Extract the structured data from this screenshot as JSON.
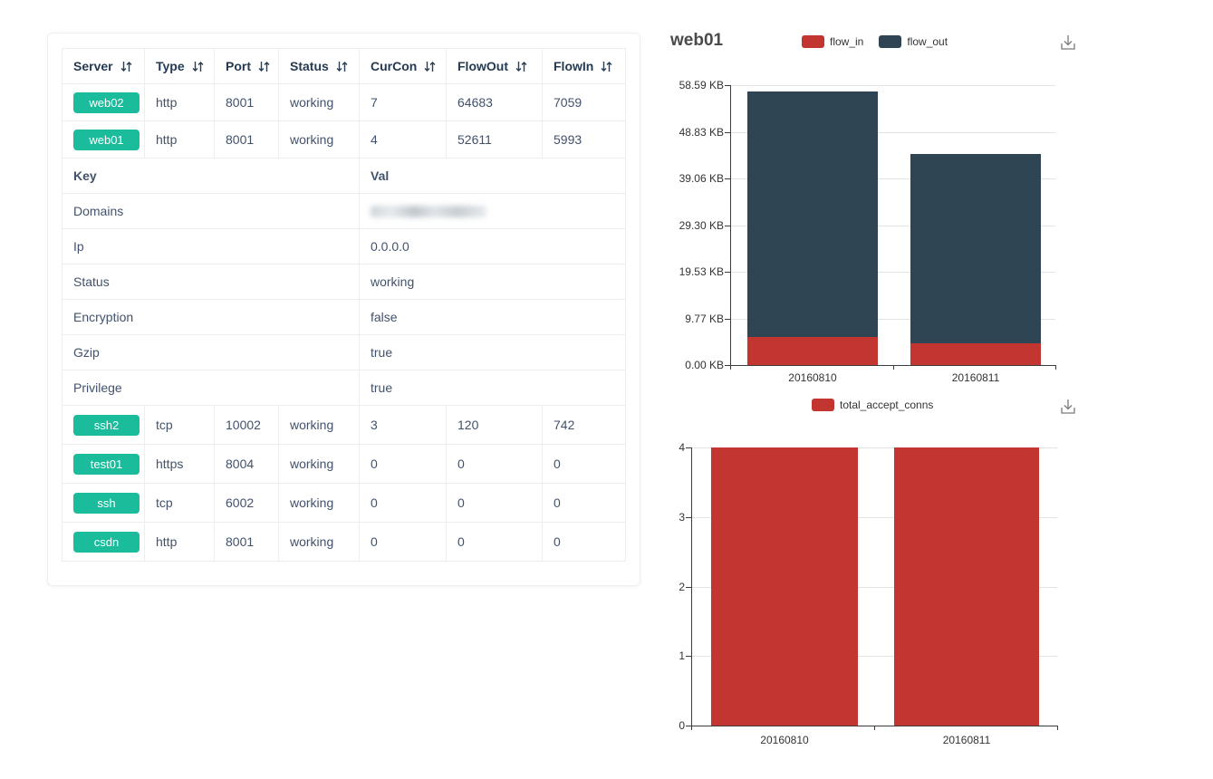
{
  "table": {
    "columns": [
      {
        "label": "Server"
      },
      {
        "label": "Type"
      },
      {
        "label": "Port"
      },
      {
        "label": "Status"
      },
      {
        "label": "CurCon"
      },
      {
        "label": "FlowOut"
      },
      {
        "label": "FlowIn"
      }
    ],
    "rows_top": [
      {
        "server": "web02",
        "type": "http",
        "port": "8001",
        "status": "working",
        "curcon": "7",
        "flowout": "64683",
        "flowin": "7059"
      },
      {
        "server": "web01",
        "type": "http",
        "port": "8001",
        "status": "working",
        "curcon": "4",
        "flowout": "52611",
        "flowin": "5993"
      }
    ],
    "kv_header": {
      "key": "Key",
      "val": "Val"
    },
    "kv_rows": [
      {
        "key": "Domains",
        "val": "",
        "redacted": true
      },
      {
        "key": "Ip",
        "val": "0.0.0.0"
      },
      {
        "key": "Status",
        "val": "working"
      },
      {
        "key": "Encryption",
        "val": "false"
      },
      {
        "key": "Gzip",
        "val": "true"
      },
      {
        "key": "Privilege",
        "val": "true"
      }
    ],
    "rows_bottom": [
      {
        "server": "ssh2",
        "type": "tcp",
        "port": "10002",
        "status": "working",
        "curcon": "3",
        "flowout": "120",
        "flowin": "742"
      },
      {
        "server": "test01",
        "type": "https",
        "port": "8004",
        "status": "working",
        "curcon": "0",
        "flowout": "0",
        "flowin": "0"
      },
      {
        "server": "ssh",
        "type": "tcp",
        "port": "6002",
        "status": "working",
        "curcon": "0",
        "flowout": "0",
        "flowin": "0"
      },
      {
        "server": "csdn",
        "type": "http",
        "port": "8001",
        "status": "working",
        "curcon": "0",
        "flowout": "0",
        "flowin": "0"
      }
    ],
    "badge_color": "#1abc9c"
  },
  "icons": {
    "sort_icon": "sort-up-down-arrows",
    "download_icon": "save-as-image-download"
  },
  "chart_data": [
    {
      "type": "bar",
      "stacked": true,
      "title": "web01",
      "categories": [
        "20160810",
        "20160811"
      ],
      "series": [
        {
          "name": "flow_in",
          "color": "#c23531",
          "values": [
            5.9,
            4.5
          ]
        },
        {
          "name": "flow_out",
          "color": "#2f4554",
          "values": [
            51.3,
            39.7
          ]
        }
      ],
      "unit": "KB",
      "ylim": [
        0,
        58.59
      ],
      "yticks": [
        "58.59 KB",
        "48.83 KB",
        "39.06 KB",
        "29.30 KB",
        "19.53 KB",
        "9.77 KB",
        "0.00 KB"
      ],
      "legend_position": "top",
      "grid": true
    },
    {
      "type": "bar",
      "stacked": false,
      "title": "",
      "categories": [
        "20160810",
        "20160811"
      ],
      "series": [
        {
          "name": "total_accept_conns",
          "color": "#c23531",
          "values": [
            4,
            4
          ]
        }
      ],
      "unit": "",
      "ylim": [
        0,
        4
      ],
      "yticks": [
        "4",
        "3",
        "2",
        "1",
        "0"
      ],
      "legend_position": "top",
      "grid": true
    }
  ]
}
